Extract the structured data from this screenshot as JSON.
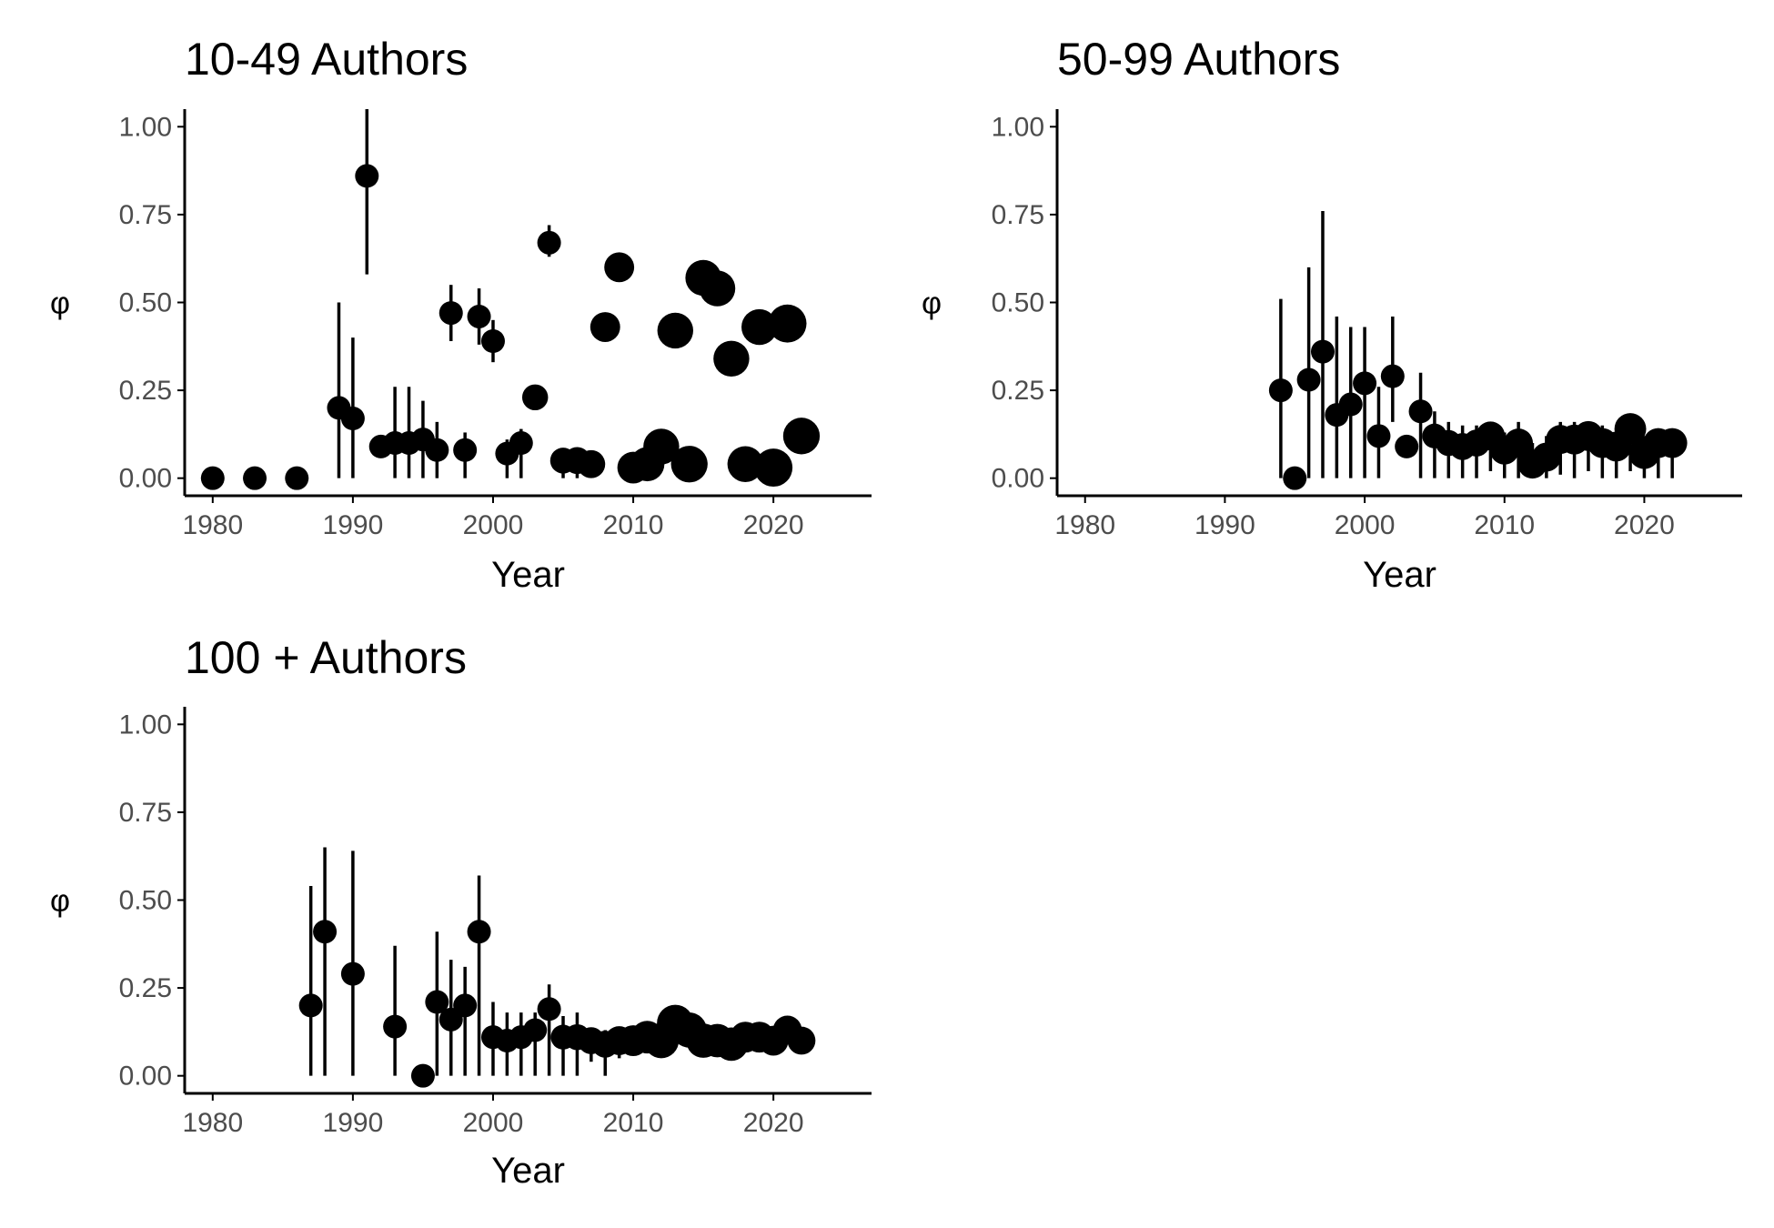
{
  "colors": {
    "marker": "#000000",
    "axis": "#000000",
    "tick_label": "#4d4d4d",
    "background": "#ffffff"
  },
  "chart_data": [
    {
      "type": "scatter",
      "title": "10-49 Authors",
      "xlabel": "Year",
      "ylabel": "φ",
      "xlim": [
        1978,
        2027
      ],
      "ylim": [
        -0.05,
        1.05
      ],
      "xticks": [
        1980,
        1990,
        2000,
        2010,
        2020
      ],
      "xtick_labels": [
        "1980",
        "1990",
        "2000",
        "2010",
        "2020"
      ],
      "yticks": [
        0,
        0.25,
        0.5,
        0.75,
        1
      ],
      "ytick_labels": [
        "0.00",
        "0.25",
        "0.50",
        "0.75",
        "1.00"
      ],
      "grid": false,
      "legend": "none",
      "marker_size_encodes": "unlabeled variable (relative size 1-5)",
      "points": [
        {
          "x": 1980,
          "y": 0.0,
          "lo": 0.0,
          "hi": 0.0,
          "size": 1
        },
        {
          "x": 1983,
          "y": 0.0,
          "lo": 0.0,
          "hi": 0.0,
          "size": 1
        },
        {
          "x": 1986,
          "y": 0.0,
          "lo": 0.0,
          "hi": 0.0,
          "size": 1
        },
        {
          "x": 1989,
          "y": 0.2,
          "lo": 0.0,
          "hi": 0.5,
          "size": 1
        },
        {
          "x": 1990,
          "y": 0.17,
          "lo": 0.0,
          "hi": 0.4,
          "size": 1
        },
        {
          "x": 1991,
          "y": 0.86,
          "lo": 0.58,
          "hi": 1.05,
          "size": 1
        },
        {
          "x": 1992,
          "y": 0.09,
          "lo": 0.09,
          "hi": 0.09,
          "size": 1
        },
        {
          "x": 1993,
          "y": 0.1,
          "lo": 0.0,
          "hi": 0.26,
          "size": 1
        },
        {
          "x": 1994,
          "y": 0.1,
          "lo": 0.0,
          "hi": 0.26,
          "size": 1
        },
        {
          "x": 1995,
          "y": 0.11,
          "lo": 0.0,
          "hi": 0.22,
          "size": 1
        },
        {
          "x": 1996,
          "y": 0.08,
          "lo": 0.0,
          "hi": 0.16,
          "size": 1
        },
        {
          "x": 1997,
          "y": 0.47,
          "lo": 0.39,
          "hi": 0.55,
          "size": 1
        },
        {
          "x": 1998,
          "y": 0.08,
          "lo": 0.0,
          "hi": 0.13,
          "size": 1
        },
        {
          "x": 1999,
          "y": 0.46,
          "lo": 0.38,
          "hi": 0.54,
          "size": 1
        },
        {
          "x": 2000,
          "y": 0.39,
          "lo": 0.33,
          "hi": 0.45,
          "size": 1
        },
        {
          "x": 2001,
          "y": 0.07,
          "lo": 0.0,
          "hi": 0.11,
          "size": 1
        },
        {
          "x": 2002,
          "y": 0.1,
          "lo": 0.0,
          "hi": 0.14,
          "size": 1
        },
        {
          "x": 2003,
          "y": 0.23,
          "lo": 0.2,
          "hi": 0.26,
          "size": 1.2
        },
        {
          "x": 2004,
          "y": 0.67,
          "lo": 0.63,
          "hi": 0.72,
          "size": 1
        },
        {
          "x": 2005,
          "y": 0.05,
          "lo": 0.0,
          "hi": 0.08,
          "size": 1.2
        },
        {
          "x": 2006,
          "y": 0.05,
          "lo": 0.0,
          "hi": 0.08,
          "size": 1.3
        },
        {
          "x": 2007,
          "y": 0.04,
          "lo": 0.02,
          "hi": 0.07,
          "size": 1.4
        },
        {
          "x": 2008,
          "y": 0.43,
          "lo": 0.4,
          "hi": 0.46,
          "size": 1.6
        },
        {
          "x": 2009,
          "y": 0.6,
          "lo": 0.57,
          "hi": 0.63,
          "size": 1.6
        },
        {
          "x": 2010,
          "y": 0.03,
          "lo": 0.01,
          "hi": 0.05,
          "size": 1.8
        },
        {
          "x": 2011,
          "y": 0.04,
          "lo": 0.02,
          "hi": 0.06,
          "size": 2.1
        },
        {
          "x": 2012,
          "y": 0.09,
          "lo": 0.07,
          "hi": 0.11,
          "size": 2.3
        },
        {
          "x": 2013,
          "y": 0.42,
          "lo": 0.4,
          "hi": 0.44,
          "size": 2.3
        },
        {
          "x": 2014,
          "y": 0.04,
          "lo": 0.02,
          "hi": 0.06,
          "size": 2.4
        },
        {
          "x": 2015,
          "y": 0.57,
          "lo": 0.55,
          "hi": 0.59,
          "size": 2.3
        },
        {
          "x": 2016,
          "y": 0.54,
          "lo": 0.52,
          "hi": 0.56,
          "size": 2.3
        },
        {
          "x": 2017,
          "y": 0.34,
          "lo": 0.32,
          "hi": 0.36,
          "size": 2.3
        },
        {
          "x": 2018,
          "y": 0.04,
          "lo": 0.02,
          "hi": 0.06,
          "size": 2.3
        },
        {
          "x": 2019,
          "y": 0.43,
          "lo": 0.41,
          "hi": 0.45,
          "size": 2.3
        },
        {
          "x": 2020,
          "y": 0.03,
          "lo": 0.01,
          "hi": 0.05,
          "size": 2.6
        },
        {
          "x": 2021,
          "y": 0.44,
          "lo": 0.42,
          "hi": 0.46,
          "size": 2.6
        },
        {
          "x": 2022,
          "y": 0.12,
          "lo": 0.1,
          "hi": 0.14,
          "size": 2.4
        }
      ]
    },
    {
      "type": "scatter",
      "title": "50-99 Authors",
      "xlabel": "Year",
      "ylabel": "φ",
      "xlim": [
        1978,
        2027
      ],
      "ylim": [
        -0.05,
        1.05
      ],
      "xticks": [
        1980,
        1990,
        2000,
        2010,
        2020
      ],
      "xtick_labels": [
        "1980",
        "1990",
        "2000",
        "2010",
        "2020"
      ],
      "yticks": [
        0,
        0.25,
        0.5,
        0.75,
        1
      ],
      "ytick_labels": [
        "0.00",
        "0.25",
        "0.50",
        "0.75",
        "1.00"
      ],
      "grid": false,
      "legend": "none",
      "marker_size_encodes": "unlabeled variable (relative size 1-5)",
      "points": [
        {
          "x": 1994,
          "y": 0.25,
          "lo": 0.0,
          "hi": 0.51,
          "size": 1
        },
        {
          "x": 1995,
          "y": 0.0,
          "lo": 0.0,
          "hi": 0.0,
          "size": 1
        },
        {
          "x": 1996,
          "y": 0.28,
          "lo": 0.0,
          "hi": 0.6,
          "size": 1
        },
        {
          "x": 1997,
          "y": 0.36,
          "lo": 0.0,
          "hi": 0.76,
          "size": 1
        },
        {
          "x": 1998,
          "y": 0.18,
          "lo": 0.0,
          "hi": 0.46,
          "size": 1
        },
        {
          "x": 1999,
          "y": 0.21,
          "lo": 0.0,
          "hi": 0.43,
          "size": 1
        },
        {
          "x": 2000,
          "y": 0.27,
          "lo": 0.0,
          "hi": 0.43,
          "size": 1
        },
        {
          "x": 2001,
          "y": 0.12,
          "lo": 0.0,
          "hi": 0.26,
          "size": 1
        },
        {
          "x": 2002,
          "y": 0.29,
          "lo": 0.16,
          "hi": 0.46,
          "size": 1
        },
        {
          "x": 2003,
          "y": 0.09,
          "lo": 0.09,
          "hi": 0.09,
          "size": 1
        },
        {
          "x": 2004,
          "y": 0.19,
          "lo": 0.0,
          "hi": 0.3,
          "size": 1
        },
        {
          "x": 2005,
          "y": 0.12,
          "lo": 0.0,
          "hi": 0.19,
          "size": 1.1
        },
        {
          "x": 2006,
          "y": 0.1,
          "lo": 0.0,
          "hi": 0.16,
          "size": 1.2
        },
        {
          "x": 2007,
          "y": 0.09,
          "lo": 0.0,
          "hi": 0.15,
          "size": 1.3
        },
        {
          "x": 2008,
          "y": 0.1,
          "lo": 0.0,
          "hi": 0.15,
          "size": 1.3
        },
        {
          "x": 2009,
          "y": 0.12,
          "lo": 0.02,
          "hi": 0.16,
          "size": 1.5
        },
        {
          "x": 2010,
          "y": 0.08,
          "lo": 0.0,
          "hi": 0.13,
          "size": 1.5
        },
        {
          "x": 2011,
          "y": 0.1,
          "lo": 0.0,
          "hi": 0.16,
          "size": 1.5
        },
        {
          "x": 2012,
          "y": 0.04,
          "lo": 0.0,
          "hi": 0.1,
          "size": 1.5
        },
        {
          "x": 2013,
          "y": 0.06,
          "lo": 0.0,
          "hi": 0.12,
          "size": 1.5
        },
        {
          "x": 2014,
          "y": 0.11,
          "lo": 0.01,
          "hi": 0.16,
          "size": 1.5
        },
        {
          "x": 2015,
          "y": 0.11,
          "lo": 0.0,
          "hi": 0.16,
          "size": 1.6
        },
        {
          "x": 2016,
          "y": 0.12,
          "lo": 0.02,
          "hi": 0.16,
          "size": 1.6
        },
        {
          "x": 2017,
          "y": 0.1,
          "lo": 0.0,
          "hi": 0.15,
          "size": 1.6
        },
        {
          "x": 2018,
          "y": 0.09,
          "lo": 0.0,
          "hi": 0.14,
          "size": 1.6
        },
        {
          "x": 2019,
          "y": 0.14,
          "lo": 0.02,
          "hi": 0.18,
          "size": 1.8
        },
        {
          "x": 2020,
          "y": 0.07,
          "lo": 0.0,
          "hi": 0.12,
          "size": 1.7
        },
        {
          "x": 2021,
          "y": 0.1,
          "lo": 0.0,
          "hi": 0.14,
          "size": 1.6
        },
        {
          "x": 2022,
          "y": 0.1,
          "lo": 0.0,
          "hi": 0.14,
          "size": 1.6
        }
      ]
    },
    {
      "type": "scatter",
      "title": "100 + Authors",
      "xlabel": "Year",
      "ylabel": "φ",
      "xlim": [
        1978,
        2027
      ],
      "ylim": [
        -0.05,
        1.05
      ],
      "xticks": [
        1980,
        1990,
        2000,
        2010,
        2020
      ],
      "xtick_labels": [
        "1980",
        "1990",
        "2000",
        "2010",
        "2020"
      ],
      "yticks": [
        0,
        0.25,
        0.5,
        0.75,
        1
      ],
      "ytick_labels": [
        "0.00",
        "0.25",
        "0.50",
        "0.75",
        "1.00"
      ],
      "grid": false,
      "legend": "none",
      "marker_size_encodes": "unlabeled variable (relative size 1-5)",
      "points": [
        {
          "x": 1987,
          "y": 0.2,
          "lo": 0.0,
          "hi": 0.54,
          "size": 1
        },
        {
          "x": 1988,
          "y": 0.41,
          "lo": 0.0,
          "hi": 0.65,
          "size": 1
        },
        {
          "x": 1990,
          "y": 0.29,
          "lo": 0.0,
          "hi": 0.64,
          "size": 1
        },
        {
          "x": 1993,
          "y": 0.14,
          "lo": 0.0,
          "hi": 0.37,
          "size": 1
        },
        {
          "x": 1995,
          "y": 0.0,
          "lo": 0.0,
          "hi": 0.0,
          "size": 1
        },
        {
          "x": 1996,
          "y": 0.21,
          "lo": 0.0,
          "hi": 0.41,
          "size": 1
        },
        {
          "x": 1997,
          "y": 0.16,
          "lo": 0.0,
          "hi": 0.33,
          "size": 1
        },
        {
          "x": 1998,
          "y": 0.2,
          "lo": 0.0,
          "hi": 0.31,
          "size": 1
        },
        {
          "x": 1999,
          "y": 0.41,
          "lo": 0.0,
          "hi": 0.57,
          "size": 1
        },
        {
          "x": 2000,
          "y": 0.11,
          "lo": 0.0,
          "hi": 0.21,
          "size": 1
        },
        {
          "x": 2001,
          "y": 0.1,
          "lo": 0.0,
          "hi": 0.18,
          "size": 1
        },
        {
          "x": 2002,
          "y": 0.11,
          "lo": 0.0,
          "hi": 0.18,
          "size": 1
        },
        {
          "x": 2003,
          "y": 0.13,
          "lo": 0.0,
          "hi": 0.18,
          "size": 1
        },
        {
          "x": 2004,
          "y": 0.19,
          "lo": 0.0,
          "hi": 0.26,
          "size": 1
        },
        {
          "x": 2005,
          "y": 0.11,
          "lo": 0.0,
          "hi": 0.17,
          "size": 1.1
        },
        {
          "x": 2006,
          "y": 0.11,
          "lo": 0.0,
          "hi": 0.18,
          "size": 1.2
        },
        {
          "x": 2007,
          "y": 0.1,
          "lo": 0.04,
          "hi": 0.13,
          "size": 1.3
        },
        {
          "x": 2008,
          "y": 0.09,
          "lo": 0.0,
          "hi": 0.13,
          "size": 1.3
        },
        {
          "x": 2009,
          "y": 0.1,
          "lo": 0.05,
          "hi": 0.13,
          "size": 1.5
        },
        {
          "x": 2010,
          "y": 0.1,
          "lo": 0.06,
          "hi": 0.13,
          "size": 1.7
        },
        {
          "x": 2011,
          "y": 0.11,
          "lo": 0.07,
          "hi": 0.14,
          "size": 1.9
        },
        {
          "x": 2012,
          "y": 0.1,
          "lo": 0.06,
          "hi": 0.14,
          "size": 2.2
        },
        {
          "x": 2013,
          "y": 0.15,
          "lo": 0.11,
          "hi": 0.19,
          "size": 2.4
        },
        {
          "x": 2014,
          "y": 0.13,
          "lo": 0.09,
          "hi": 0.17,
          "size": 2.2
        },
        {
          "x": 2015,
          "y": 0.1,
          "lo": 0.07,
          "hi": 0.13,
          "size": 2.1
        },
        {
          "x": 2016,
          "y": 0.1,
          "lo": 0.07,
          "hi": 0.13,
          "size": 2.0
        },
        {
          "x": 2017,
          "y": 0.09,
          "lo": 0.06,
          "hi": 0.12,
          "size": 2.0
        },
        {
          "x": 2018,
          "y": 0.11,
          "lo": 0.08,
          "hi": 0.14,
          "size": 1.7
        },
        {
          "x": 2019,
          "y": 0.11,
          "lo": 0.08,
          "hi": 0.14,
          "size": 1.7
        },
        {
          "x": 2020,
          "y": 0.1,
          "lo": 0.07,
          "hi": 0.13,
          "size": 1.6
        },
        {
          "x": 2021,
          "y": 0.13,
          "lo": 0.1,
          "hi": 0.16,
          "size": 1.5
        },
        {
          "x": 2022,
          "y": 0.1,
          "lo": 0.07,
          "hi": 0.13,
          "size": 1.4
        }
      ]
    }
  ]
}
